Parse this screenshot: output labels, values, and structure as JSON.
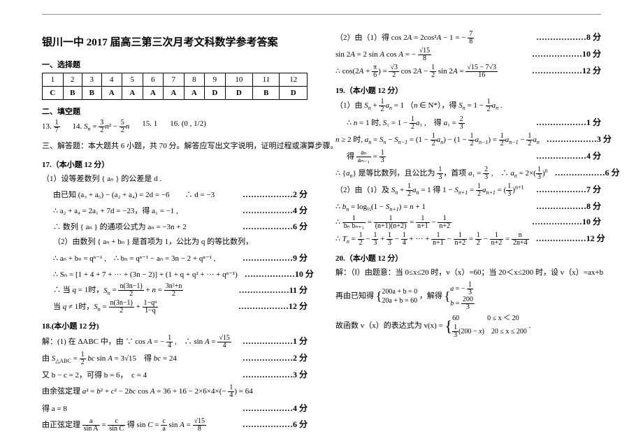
{
  "title": "银川一中 2017 届高三第三次月考文科数学参考答案",
  "sec1": "一、选择题",
  "sec2": "二、填空题",
  "sec3": "三、解答题：本大题共 6 小题，共 70 分。解答应写出文字说明，证明过程或演算步骤。",
  "q17h": "17.（本小题 12 分）",
  "q18h": "18.(本小题 12 分)",
  "q19h": "19.（本小题 12 分）",
  "q20h": "20.（本小题 12 分）",
  "fill": {
    "a": "13.",
    "av": "− 1/7",
    "b": "14.",
    "bv": "Sₙ = 3/2 n² − 5/2 n",
    "c": "15. 1",
    "d": "16. (0 , 1/2)"
  },
  "ans_nums": [
    "1",
    "2",
    "3",
    "4",
    "5",
    "6",
    "7",
    "8",
    "9",
    "10",
    "11",
    "12"
  ],
  "ans_vals": [
    "C",
    "B",
    "B",
    "A",
    "A",
    "A",
    "A",
    "A",
    "D",
    "D",
    "B",
    "D"
  ],
  "q17": {
    "l1": "（1）设等差数列 { aₙ } 的公差是 d .",
    "l2": "由已知 (a₃ + a₅) − (a₂ + a₄) = 2d = −6　　∴ d = −3",
    "l3": "∴ a₂ + a₄ = 2a₁ + 7d = −23，得 a₁ = −1 ,",
    "l4": "∴ 数列 { aₙ } 的通项公式为 aₙ = −3n + 2",
    "l5": "（2）由数列 { aₙ + bₙ } 是首项为 1，公比为 q 的等比数列，",
    "l6": "∴ aₙ + bₙ = qⁿ⁻¹ ,　∴ bₙ = qⁿ⁻¹ − aₙ = 3n − 2 + qⁿ⁻¹ ,",
    "l7": "∴ Sₙ = [1 + 4 + 7 + ··· + (3n − 2)] + (1 + q + q² + ··· + qⁿ⁻¹)",
    "l8": "∴ 当 q = 1 时，Sₙ = n(3n−1)/2 + n = (3n² + n)/2",
    "l9": "当 q ≠ 1 时，Sₙ = n(3n−1)/2 + (1 − qⁿ)/(1 − q)",
    "s2": "………………2 分",
    "s4": "………………4 分",
    "s6": "………………6 分",
    "s9": "………………9 分",
    "s10": "………………10 分",
    "s11": "………………11 分",
    "s12": "………………12 分"
  },
  "q18": {
    "l1": "解：(1) 在 ΔABC 中，由 ∵ cos A = − 1/4 ,　∴ sin A = √15 / 4",
    "l2": "由 S△ABC = 1/2 bc sin A = 3√15　得 bc = 24",
    "l3": "又 b − c = 2，可得 b = 6，　c = 4",
    "l4": "由余弦定理 a² = b² + c² − 2bc cos A = 36 + 16 − 2×6×4×(− 1/4) = 64",
    "l5": "得 a = 8",
    "l6": "由正弦定理 a/sin A = c/sin C 得 sin C = c/a · sin A = √15 / 8",
    "s1": "………………1 分",
    "s2": "………………2 分",
    "s3": "………………3 分",
    "s4": "………………4 分",
    "s6": "………………6 分"
  },
  "right": {
    "l1": "（2）由（1）得 cos 2A = 2cos²A − 1 = − 7/8",
    "l2": "sin 2A = 2 sin A cos A = − √15 / 8",
    "l3": "∴ cos(2A + π/6) = √3/2 cos 2A − 1/2 sin 2A = (√15 − 7√3) / 16",
    "l4": "（1）由 Sₙ + 1/2 aₙ = 1 （n ∈ N*），得 Sₙ = 1 − 1/2 aₙ .",
    "l5": "∴ n = 1 时, S₁ = 1 − 1/2 a₁ ,　得 a₁ = 2/3",
    "l6": "n ≥ 2 时, aₙ = Sₙ − Sₙ₋₁ = (1 − 1/2 aₙ) − (1 − 1/2 aₙ₋₁) = 1/2 aₙ₋₁ − 1/2 aₙ",
    "l7": "得 aₙ / aₙ₋₁ = 1/3",
    "l8": "∴ {aₙ} 是等比数列，且公比为 1/3，首项 a₁ = 2/3 ,　∴ aₙ = 2×(1/3)ⁿ",
    "l9": "（2）由（1）及 Sₙ + 1/2 aₙ = 1 得 1 − Sₙ₊₁ = 1/2 aₙ₊₁ = (1/3)ⁿ⁺¹",
    "l10": "∴ bₙ = log₁/₃(1 − Sₙ₊₁) = n + 1",
    "l11": "∴ 1/(bₙ bₙ₊₁) = 1/((n+1)(n+2)) = 1/(n+1) − 1/(n+2)",
    "l12": "∴ Tₙ = 1/2 − 1/3 + 1/3 − 1/4 + ··· + 1/(n+1) − 1/(n+2) = 1/2 − 1/(n+2) = n/(2n+4)",
    "q20a": "解：（Ⅰ）由题意：当 0≤x≤20 时，v（x）=60；当 20＜x≤200 时，设 v（x）=ax+b",
    "q20b_pre": "再由已知得",
    "q20b_sys1a": "200a + b = 0",
    "q20b_sys1b": "20a + b = 60",
    "q20b_mid": "，解得",
    "q20b_sys2a": "a = − 1/3",
    "q20b_sys2b": "b = 200/3",
    "q20c_pre": "故函数 v（x）的表达式为 v(x) =",
    "q20c_1": "60",
    "q20c_1r": "0 ≤ x ＜ 20",
    "q20c_2": "1/3 (200 − x)",
    "q20c_2r": "20 ≤ x ≤ 200",
    "s1": "………………1 分",
    "s3": "………………3 分",
    "s4": "………………4 分",
    "s6": "………………6 分",
    "s7": "………………7 分",
    "s8": "………………8 分",
    "s10": "………………10 分",
    "s12": "………………12 分"
  }
}
